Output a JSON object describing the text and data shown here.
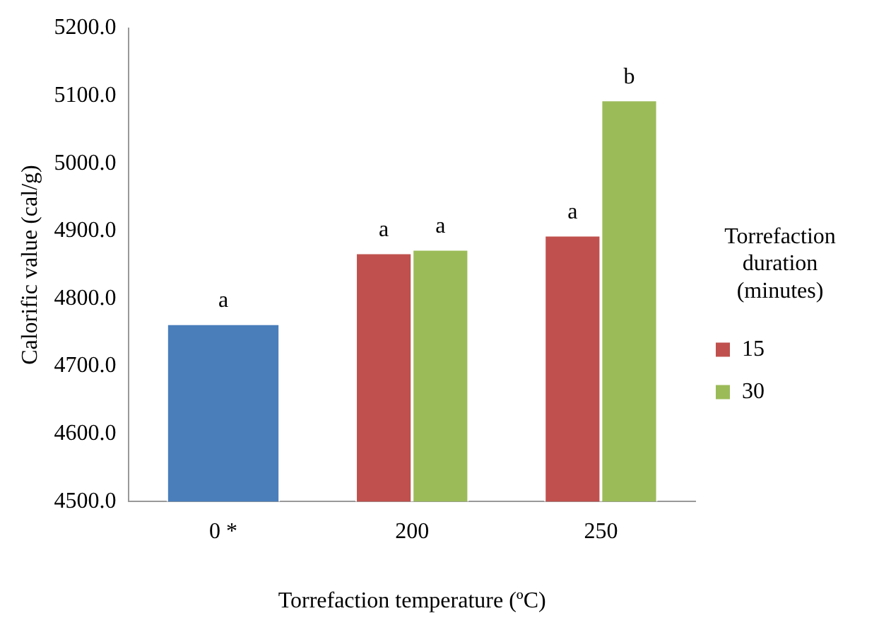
{
  "chart_data": {
    "type": "bar",
    "xlabel": "Torrefaction temperature (ºC)",
    "ylabel": "Calorific value (cal/g)",
    "legend_title": "Torrefaction duration (minutes)",
    "legend": "right",
    "grid": false,
    "categories": [
      "0 *",
      "200",
      "250"
    ],
    "series": [
      {
        "color": "#4a7ebb",
        "values": [
          4763,
          null,
          null
        ]
      },
      {
        "name": "15",
        "color": "#c0504d",
        "values": [
          null,
          4868,
          4894
        ]
      },
      {
        "name": "30",
        "color": "#9bbb59",
        "values": [
          null,
          4873,
          5094
        ]
      }
    ],
    "ylim": [
      4500,
      5200
    ],
    "yticks": [
      {
        "value": 4500,
        "label": "4500.0"
      },
      {
        "value": 4600,
        "label": "4600.0"
      },
      {
        "value": 4700,
        "label": "4700.0"
      },
      {
        "value": 4800,
        "label": "4800.0"
      },
      {
        "value": 4900,
        "label": "4900.0"
      },
      {
        "value": 5000,
        "label": "5000.0"
      },
      {
        "value": 5100,
        "label": "5100.0"
      },
      {
        "value": 5200,
        "label": "5200.0"
      }
    ],
    "annotations": [
      {
        "text": "a",
        "x": "0 *",
        "y": 4763
      },
      {
        "text": "a",
        "x": "200",
        "y": 4868
      },
      {
        "text": "a",
        "x": "200",
        "y": 4873
      },
      {
        "text": "a",
        "x": "250",
        "y": 4894
      },
      {
        "text": "b",
        "x": "250",
        "y": 5094
      }
    ]
  }
}
